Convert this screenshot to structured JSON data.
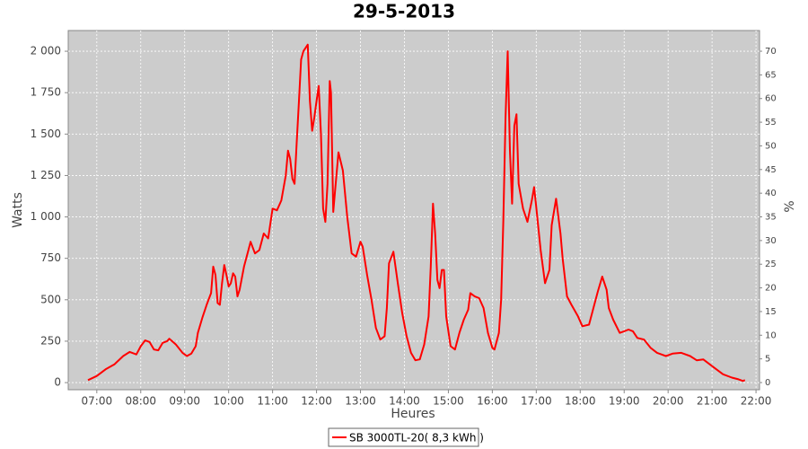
{
  "chart_data": {
    "type": "line",
    "title": "29-5-2013",
    "x_label": "Heures",
    "y_label": "Watts",
    "y2_label": "%",
    "xlim": [
      6.35,
      22.08
    ],
    "xticks": [
      {
        "value": 7,
        "label": "07:00"
      },
      {
        "value": 8,
        "label": "08:00"
      },
      {
        "value": 9,
        "label": "09:00"
      },
      {
        "value": 10,
        "label": "10:00"
      },
      {
        "value": 11,
        "label": "11:00"
      },
      {
        "value": 12,
        "label": "12:00"
      },
      {
        "value": 13,
        "label": "13:00"
      },
      {
        "value": 14,
        "label": "14:00"
      },
      {
        "value": 15,
        "label": "15:00"
      },
      {
        "value": 16,
        "label": "16:00"
      },
      {
        "value": 17,
        "label": "17:00"
      },
      {
        "value": 18,
        "label": "18:00"
      },
      {
        "value": 19,
        "label": "19:00"
      },
      {
        "value": 20,
        "label": "20:00"
      },
      {
        "value": 21,
        "label": "21:00"
      },
      {
        "value": 22,
        "label": "22:00"
      }
    ],
    "ylim": [
      -43,
      2125
    ],
    "yticks": [
      0,
      250,
      500,
      750,
      {
        "value": 1000,
        "label": "1 000"
      },
      {
        "value": 1250,
        "label": "1 250"
      },
      {
        "value": 1500,
        "label": "1 500"
      },
      {
        "value": 1750,
        "label": "1 750"
      },
      {
        "value": 2000,
        "label": "2 000"
      }
    ],
    "y2lim": [
      -1.52,
      74.37
    ],
    "y2ticks": [
      0,
      5,
      10,
      15,
      20,
      25,
      30,
      35,
      40,
      45,
      50,
      55,
      60,
      65,
      70
    ],
    "grid": true,
    "legend": "bottom",
    "x": [
      6.8,
      7.0,
      7.2,
      7.4,
      7.6,
      7.75,
      7.9,
      8.0,
      8.1,
      8.2,
      8.3,
      8.4,
      8.5,
      8.6,
      8.65,
      8.8,
      8.95,
      9.05,
      9.15,
      9.25,
      9.3,
      9.4,
      9.5,
      9.6,
      9.65,
      9.7,
      9.75,
      9.8,
      9.85,
      9.9,
      9.95,
      10.0,
      10.05,
      10.1,
      10.15,
      10.2,
      10.25,
      10.35,
      10.45,
      10.5,
      10.6,
      10.7,
      10.8,
      10.9,
      11.0,
      11.1,
      11.2,
      11.3,
      11.35,
      11.4,
      11.45,
      11.5,
      11.55,
      11.6,
      11.65,
      11.7,
      11.8,
      11.85,
      11.9,
      11.95,
      12.0,
      12.05,
      12.1,
      12.15,
      12.2,
      12.25,
      12.3,
      12.33,
      12.38,
      12.42,
      12.5,
      12.6,
      12.7,
      12.8,
      12.9,
      13.0,
      13.05,
      13.15,
      13.25,
      13.35,
      13.45,
      13.55,
      13.6,
      13.65,
      13.75,
      13.85,
      13.95,
      14.05,
      14.15,
      14.25,
      14.35,
      14.45,
      14.55,
      14.6,
      14.65,
      14.7,
      14.75,
      14.8,
      14.85,
      14.9,
      14.95,
      15.05,
      15.15,
      15.25,
      15.35,
      15.45,
      15.5,
      15.6,
      15.7,
      15.8,
      15.9,
      16.0,
      16.05,
      16.15,
      16.2,
      16.25,
      16.3,
      16.35,
      16.4,
      16.45,
      16.5,
      16.55,
      16.6,
      16.7,
      16.8,
      16.9,
      16.95,
      17.0,
      17.1,
      17.2,
      17.3,
      17.35,
      17.45,
      17.55,
      17.6,
      17.7,
      17.8,
      17.95,
      18.05,
      18.2,
      18.3,
      18.4,
      18.5,
      18.6,
      18.65,
      18.75,
      18.9,
      19.0,
      19.1,
      19.2,
      19.3,
      19.45,
      19.6,
      19.75,
      19.85,
      19.95,
      20.1,
      20.3,
      20.5,
      20.65,
      20.8,
      20.95,
      21.1,
      21.25,
      21.45,
      21.6,
      21.7,
      21.75
    ],
    "series": [
      {
        "name": "SB 3000TL-20( 8,3 kWh )",
        "color": "#ff0000",
        "values": [
          15,
          40,
          80,
          110,
          160,
          185,
          170,
          220,
          255,
          245,
          200,
          195,
          240,
          250,
          265,
          230,
          180,
          160,
          175,
          220,
          300,
          390,
          470,
          540,
          700,
          650,
          480,
          470,
          600,
          710,
          650,
          580,
          600,
          660,
          640,
          520,
          560,
          700,
          800,
          850,
          780,
          800,
          900,
          870,
          1050,
          1040,
          1100,
          1250,
          1400,
          1350,
          1230,
          1200,
          1450,
          1700,
          1950,
          2000,
          2040,
          1700,
          1520,
          1600,
          1700,
          1790,
          1500,
          1050,
          970,
          1200,
          1820,
          1750,
          1030,
          1150,
          1390,
          1280,
          1000,
          780,
          760,
          850,
          820,
          650,
          500,
          330,
          260,
          280,
          450,
          720,
          790,
          600,
          420,
          280,
          180,
          135,
          140,
          230,
          400,
          700,
          1080,
          900,
          620,
          570,
          680,
          680,
          400,
          220,
          200,
          300,
          380,
          440,
          540,
          520,
          510,
          450,
          300,
          210,
          200,
          300,
          500,
          970,
          1600,
          2000,
          1400,
          1080,
          1550,
          1620,
          1200,
          1050,
          970,
          1100,
          1180,
          1060,
          800,
          600,
          680,
          950,
          1110,
          900,
          750,
          520,
          470,
          400,
          340,
          350,
          450,
          550,
          640,
          560,
          450,
          380,
          300,
          310,
          320,
          310,
          270,
          260,
          210,
          180,
          170,
          160,
          175,
          180,
          160,
          135,
          140,
          110,
          80,
          50,
          30,
          20,
          10,
          15
        ]
      }
    ]
  }
}
